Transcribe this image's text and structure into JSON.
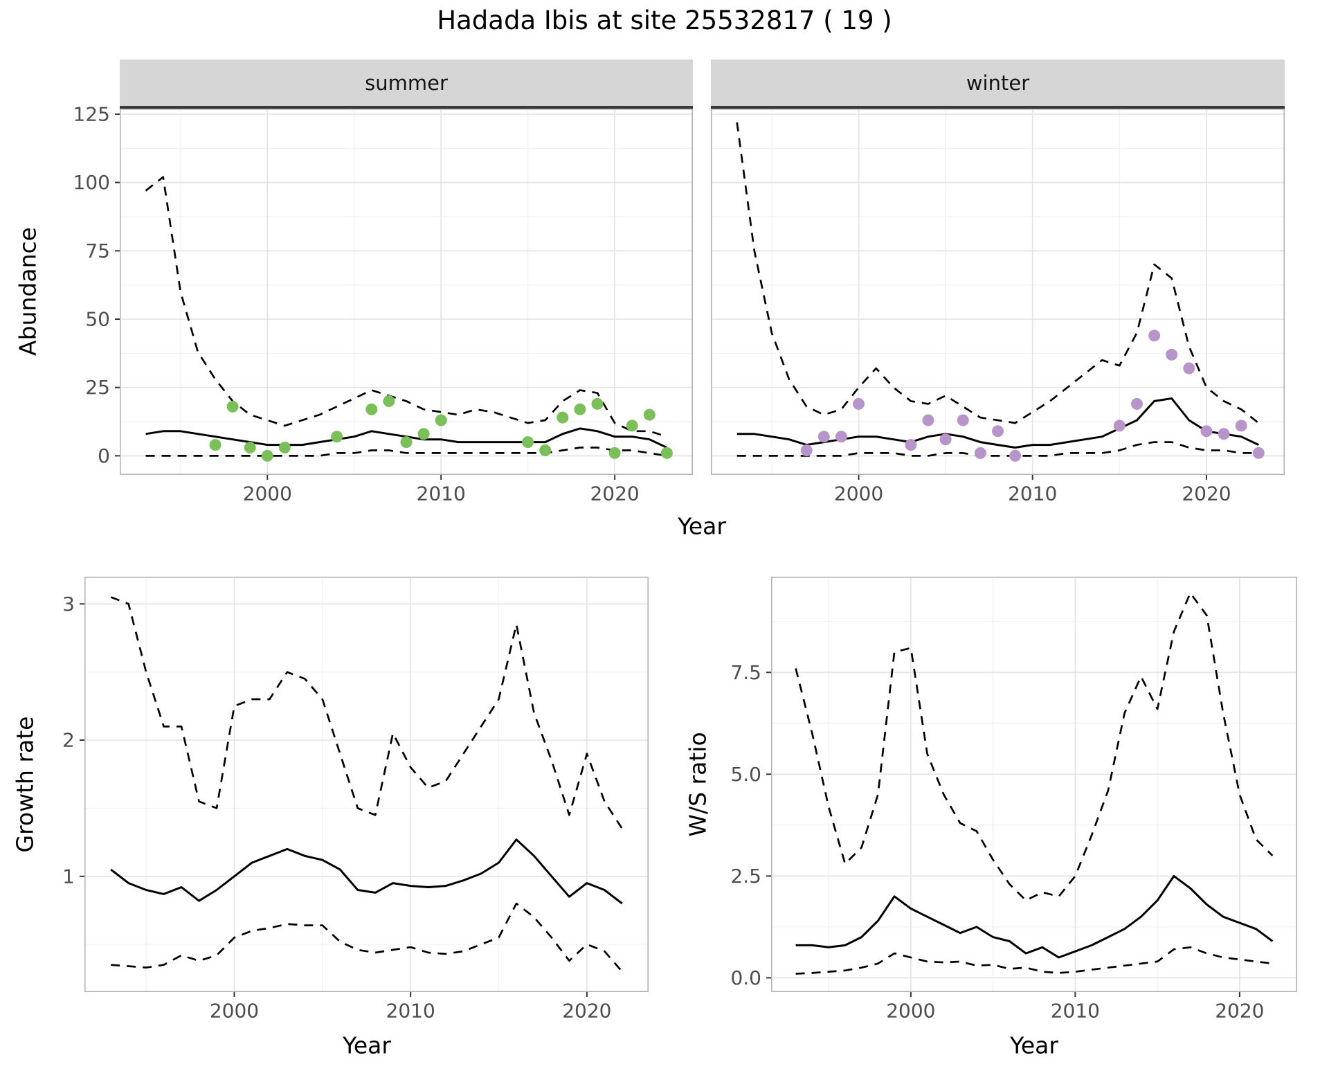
{
  "title": "Hadada Ibis at site 25532817 ( 19 )",
  "colors": {
    "summer_points": "#7abf5a",
    "winter_points": "#b794c9",
    "line": "#000000",
    "strip_bg": "#d6d6d6",
    "strip_border": "#3a3a3a",
    "grid_major": "#e4e4e4",
    "grid_minor": "#f1f1f1",
    "panel_border": "#b3b3b3",
    "tick_mark": "#333333",
    "tick_label": "#4d4d4d"
  },
  "chart_data": [
    {
      "type": "line",
      "strip": "summer",
      "ylabel": "Abundance",
      "xlabel": "Year",
      "xlim": [
        1991.5,
        2024.5
      ],
      "ylim": [
        -7,
        127
      ],
      "xticks": [
        2000,
        2010,
        2020
      ],
      "xtick_labels": [
        "2000",
        "2010",
        "2020"
      ],
      "x_minor": [
        1995,
        2005,
        2015
      ],
      "yticks": [
        0,
        25,
        50,
        75,
        100,
        125
      ],
      "ytick_labels": [
        "0",
        "25",
        "50",
        "75",
        "100",
        "125"
      ],
      "y_minor": [
        12.5,
        37.5,
        62.5,
        87.5,
        112.5
      ],
      "y_axis": true,
      "x": [
        1993,
        1994,
        1995,
        1996,
        1997,
        1998,
        1999,
        2000,
        2001,
        2002,
        2003,
        2004,
        2005,
        2006,
        2007,
        2008,
        2009,
        2010,
        2011,
        2012,
        2013,
        2014,
        2015,
        2016,
        2017,
        2018,
        2019,
        2020,
        2021,
        2022,
        2023
      ],
      "series": [
        {
          "name": "ci-upper",
          "style": "dashed",
          "values": [
            97,
            102,
            60,
            38,
            28,
            20,
            15,
            13,
            11,
            13,
            15,
            18,
            21,
            24,
            22,
            20,
            17,
            16,
            15,
            17,
            16,
            14,
            12,
            13,
            20,
            24,
            23,
            12,
            9,
            9,
            7
          ]
        },
        {
          "name": "mean",
          "style": "solid",
          "values": [
            8,
            9,
            9,
            8,
            7,
            6,
            5,
            4,
            4,
            4,
            5,
            6,
            7,
            9,
            8,
            7,
            6,
            6,
            5,
            5,
            5,
            5,
            5,
            5,
            8,
            10,
            9,
            7,
            7,
            6,
            3
          ]
        },
        {
          "name": "ci-lower",
          "style": "dashed",
          "values": [
            0,
            0,
            0,
            0,
            0,
            0,
            0,
            0,
            0,
            0,
            0,
            1,
            1,
            2,
            2,
            1,
            1,
            1,
            1,
            1,
            1,
            1,
            1,
            1,
            2,
            3,
            3,
            2,
            2,
            1,
            0
          ]
        }
      ],
      "points": {
        "name": "observed-summer",
        "color_key": "summer_points",
        "x": [
          1997,
          1998,
          1999,
          2000,
          2001,
          2004,
          2006,
          2007,
          2008,
          2009,
          2010,
          2015,
          2016,
          2017,
          2018,
          2019,
          2020,
          2021,
          2022,
          2023
        ],
        "y": [
          4,
          18,
          3,
          0,
          3,
          7,
          17,
          20,
          5,
          8,
          13,
          5,
          2,
          14,
          17,
          19,
          1,
          11,
          15,
          1
        ]
      }
    },
    {
      "type": "line",
      "strip": "winter",
      "ylabel": "Abundance",
      "xlabel": "Year",
      "xlim": [
        1991.5,
        2024.5
      ],
      "ylim": [
        -7,
        127
      ],
      "xticks": [
        2000,
        2010,
        2020
      ],
      "xtick_labels": [
        "2000",
        "2010",
        "2020"
      ],
      "x_minor": [
        1995,
        2005,
        2015
      ],
      "yticks": [
        0,
        25,
        50,
        75,
        100,
        125
      ],
      "ytick_labels": [
        "0",
        "25",
        "50",
        "75",
        "100",
        "125"
      ],
      "y_minor": [
        12.5,
        37.5,
        62.5,
        87.5,
        112.5
      ],
      "y_axis": false,
      "x": [
        1993,
        1994,
        1995,
        1996,
        1997,
        1998,
        1999,
        2000,
        2001,
        2002,
        2003,
        2004,
        2005,
        2006,
        2007,
        2008,
        2009,
        2010,
        2011,
        2012,
        2013,
        2014,
        2015,
        2016,
        2017,
        2018,
        2019,
        2020,
        2021,
        2022,
        2023
      ],
      "series": [
        {
          "name": "ci-upper",
          "style": "dashed",
          "values": [
            122,
            75,
            45,
            28,
            18,
            15,
            17,
            25,
            32,
            25,
            20,
            19,
            22,
            18,
            14,
            13,
            12,
            16,
            20,
            25,
            30,
            35,
            33,
            45,
            70,
            65,
            40,
            25,
            20,
            17,
            12
          ]
        },
        {
          "name": "mean",
          "style": "solid",
          "values": [
            8,
            8,
            7,
            6,
            4,
            5,
            6,
            7,
            7,
            6,
            5,
            7,
            8,
            7,
            5,
            4,
            3,
            4,
            4,
            5,
            6,
            7,
            10,
            13,
            20,
            21,
            13,
            9,
            8,
            7,
            4
          ]
        },
        {
          "name": "ci-lower",
          "style": "dashed",
          "values": [
            0,
            0,
            0,
            0,
            0,
            0,
            0,
            1,
            1,
            1,
            0,
            0,
            1,
            1,
            0,
            0,
            0,
            0,
            0,
            1,
            1,
            1,
            2,
            4,
            5,
            5,
            3,
            2,
            2,
            1,
            1
          ]
        }
      ],
      "points": {
        "name": "observed-winter",
        "color_key": "winter_points",
        "x": [
          1997,
          1998,
          1999,
          2000,
          2003,
          2004,
          2005,
          2006,
          2007,
          2008,
          2009,
          2015,
          2016,
          2017,
          2018,
          2019,
          2020,
          2021,
          2022,
          2023
        ],
        "y": [
          2,
          7,
          7,
          19,
          4,
          13,
          6,
          13,
          1,
          9,
          0,
          11,
          19,
          44,
          37,
          32,
          9,
          8,
          11,
          1
        ]
      }
    },
    {
      "type": "line",
      "strip": null,
      "ylabel": "Growth rate",
      "xlabel": "Year",
      "xlim": [
        1991.5,
        2023.5
      ],
      "ylim": [
        0.15,
        3.2
      ],
      "xticks": [
        2000,
        2010,
        2020
      ],
      "xtick_labels": [
        "2000",
        "2010",
        "2020"
      ],
      "x_minor": [
        1995,
        2005,
        2015
      ],
      "yticks": [
        1,
        2,
        3
      ],
      "ytick_labels": [
        "1",
        "2",
        "3"
      ],
      "y_minor": [
        0.5,
        1.5,
        2.5
      ],
      "y_axis": true,
      "x": [
        1993,
        1994,
        1995,
        1996,
        1997,
        1998,
        1999,
        2000,
        2001,
        2002,
        2003,
        2004,
        2005,
        2006,
        2007,
        2008,
        2009,
        2010,
        2011,
        2012,
        2013,
        2014,
        2015,
        2016,
        2017,
        2018,
        2019,
        2020,
        2021,
        2022
      ],
      "series": [
        {
          "name": "ci-upper",
          "style": "dashed",
          "values": [
            3.05,
            3.0,
            2.5,
            2.1,
            2.1,
            1.55,
            1.5,
            2.25,
            2.3,
            2.3,
            2.5,
            2.45,
            2.3,
            1.9,
            1.5,
            1.45,
            2.05,
            1.8,
            1.65,
            1.7,
            1.9,
            2.1,
            2.3,
            2.85,
            2.2,
            1.85,
            1.45,
            1.9,
            1.55,
            1.35
          ]
        },
        {
          "name": "mean",
          "style": "solid",
          "values": [
            1.05,
            0.95,
            0.9,
            0.87,
            0.92,
            0.82,
            0.9,
            1.0,
            1.1,
            1.15,
            1.2,
            1.15,
            1.12,
            1.05,
            0.9,
            0.88,
            0.95,
            0.93,
            0.92,
            0.93,
            0.97,
            1.02,
            1.1,
            1.27,
            1.15,
            1.0,
            0.85,
            0.95,
            0.9,
            0.8
          ]
        },
        {
          "name": "ci-lower",
          "style": "dashed",
          "values": [
            0.35,
            0.34,
            0.33,
            0.35,
            0.42,
            0.38,
            0.42,
            0.55,
            0.6,
            0.62,
            0.65,
            0.64,
            0.64,
            0.52,
            0.46,
            0.44,
            0.46,
            0.48,
            0.44,
            0.43,
            0.45,
            0.5,
            0.55,
            0.8,
            0.7,
            0.55,
            0.38,
            0.5,
            0.45,
            0.3
          ]
        }
      ],
      "points": null
    },
    {
      "type": "line",
      "strip": null,
      "ylabel": "W/S ratio",
      "xlabel": "Year",
      "xlim": [
        1991.5,
        2023.5
      ],
      "ylim": [
        -0.35,
        9.85
      ],
      "xticks": [
        2000,
        2010,
        2020
      ],
      "xtick_labels": [
        "2000",
        "2010",
        "2020"
      ],
      "x_minor": [
        1995,
        2005,
        2015
      ],
      "yticks": [
        0,
        2.5,
        5,
        7.5
      ],
      "ytick_labels": [
        "0.0",
        "2.5",
        "5.0",
        "7.5"
      ],
      "y_minor": [
        1.25,
        3.75,
        6.25,
        8.75
      ],
      "y_axis": true,
      "x": [
        1993,
        1994,
        1995,
        1996,
        1997,
        1998,
        1999,
        2000,
        2001,
        2002,
        2003,
        2004,
        2005,
        2006,
        2007,
        2008,
        2009,
        2010,
        2011,
        2012,
        2013,
        2014,
        2015,
        2016,
        2017,
        2018,
        2019,
        2020,
        2021,
        2022
      ],
      "series": [
        {
          "name": "ci-upper",
          "style": "dashed",
          "values": [
            7.6,
            6.0,
            4.2,
            2.8,
            3.2,
            4.5,
            8.0,
            8.1,
            5.5,
            4.5,
            3.8,
            3.6,
            2.9,
            2.3,
            1.9,
            2.1,
            2.0,
            2.5,
            3.5,
            4.6,
            6.5,
            7.4,
            6.6,
            8.5,
            9.45,
            8.9,
            6.5,
            4.5,
            3.4,
            3.0
          ]
        },
        {
          "name": "mean",
          "style": "solid",
          "values": [
            0.8,
            0.8,
            0.75,
            0.8,
            1.0,
            1.4,
            2.0,
            1.7,
            1.5,
            1.3,
            1.1,
            1.25,
            1.0,
            0.9,
            0.6,
            0.75,
            0.5,
            0.65,
            0.8,
            1.0,
            1.2,
            1.5,
            1.9,
            2.5,
            2.2,
            1.8,
            1.5,
            1.35,
            1.2,
            0.9
          ]
        },
        {
          "name": "ci-lower",
          "style": "dashed",
          "values": [
            0.1,
            0.12,
            0.15,
            0.18,
            0.25,
            0.35,
            0.6,
            0.5,
            0.4,
            0.38,
            0.4,
            0.3,
            0.32,
            0.22,
            0.25,
            0.15,
            0.12,
            0.15,
            0.2,
            0.25,
            0.3,
            0.35,
            0.4,
            0.7,
            0.75,
            0.6,
            0.5,
            0.45,
            0.4,
            0.35
          ]
        }
      ],
      "points": null
    }
  ]
}
